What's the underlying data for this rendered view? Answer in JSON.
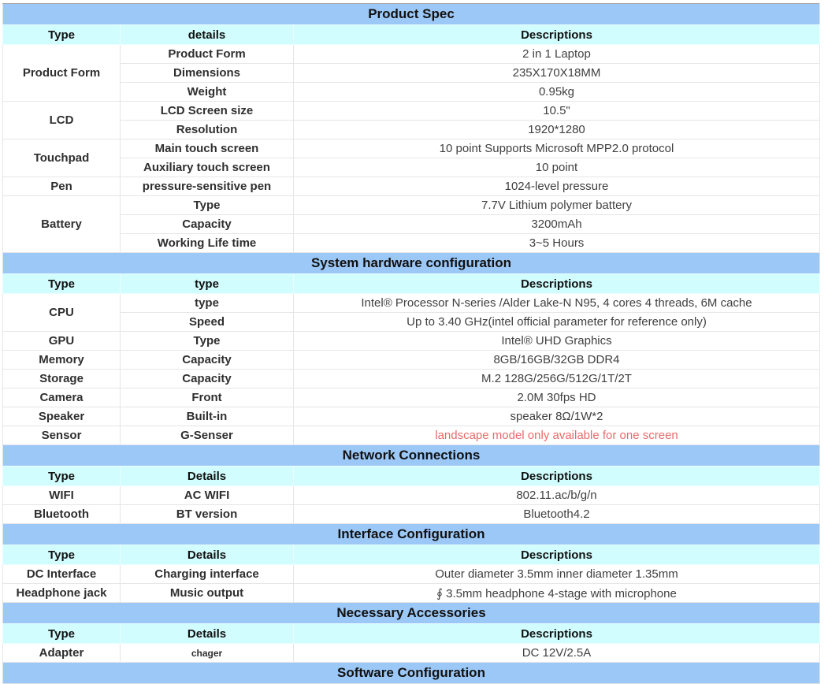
{
  "colors": {
    "section_header_bg": "#9cc8f7",
    "column_header_bg": "#d2fdfe",
    "warning_text": "#e96a6a",
    "body_text": "#404040",
    "bold_text": "#2f2f2f"
  },
  "sections": [
    {
      "title": "Product Spec",
      "headers": {
        "type": "Type",
        "detail": "details",
        "desc": "Descriptions"
      },
      "groups": [
        {
          "type": "Product Form",
          "rows": [
            {
              "detail": "Product Form",
              "desc": "2 in 1 Laptop"
            },
            {
              "detail": "Dimensions",
              "desc": "235X170X18MM"
            },
            {
              "detail": "Weight",
              "desc": "0.95kg"
            }
          ]
        },
        {
          "type": "LCD",
          "rows": [
            {
              "detail": "LCD Screen size",
              "desc": "10.5\""
            },
            {
              "detail": "Resolution",
              "desc": "1920*1280"
            }
          ]
        },
        {
          "type": "Touchpad",
          "rows": [
            {
              "detail": "Main touch screen",
              "desc": "10 point Supports Microsoft MPP2.0 protocol"
            },
            {
              "detail": "Auxiliary touch screen",
              "desc": "10 point"
            }
          ]
        },
        {
          "type": "Pen",
          "rows": [
            {
              "detail": "pressure-sensitive pen",
              "desc": "1024-level pressure"
            }
          ]
        },
        {
          "type": "Battery",
          "rows": [
            {
              "detail": "Type",
              "desc": "7.7V Lithium polymer battery"
            },
            {
              "detail": "Capacity",
              "desc": "3200mAh"
            },
            {
              "detail": "Working Life time",
              "desc": "3~5 Hours"
            }
          ]
        }
      ]
    },
    {
      "title": "System hardware configuration",
      "headers": {
        "type": "Type",
        "detail": "type",
        "desc": "Descriptions"
      },
      "groups": [
        {
          "type": "CPU",
          "rows": [
            {
              "detail": "type",
              "desc": "Intel® Processor N-series /Alder Lake-N N95, 4 cores 4 threads, 6M cache"
            },
            {
              "detail": "Speed",
              "desc": "Up to 3.40 GHz(intel official parameter for reference only)"
            }
          ]
        },
        {
          "type": "GPU",
          "rows": [
            {
              "detail": "Type",
              "desc": "Intel® UHD Graphics"
            }
          ]
        },
        {
          "type": "Memory",
          "rows": [
            {
              "detail": "Capacity",
              "desc": "8GB/16GB/32GB DDR4"
            }
          ]
        },
        {
          "type": "Storage",
          "rows": [
            {
              "detail": "Capacity",
              "desc": "M.2 128G/256G/512G/1T/2T"
            }
          ]
        },
        {
          "type": "Camera",
          "rows": [
            {
              "detail": "Front",
              "desc": "2.0M 30fps HD"
            }
          ]
        },
        {
          "type": "Speaker",
          "rows": [
            {
              "detail": "Built-in",
              "desc": "speaker 8Ω/1W*2"
            }
          ]
        },
        {
          "type": "Sensor",
          "rows": [
            {
              "detail": "G-Senser",
              "desc": "landscape model only available for one screen"
            }
          ]
        }
      ]
    },
    {
      "title": "Network Connections",
      "headers": {
        "type": "Type",
        "detail": "Details",
        "desc": "Descriptions"
      },
      "groups": [
        {
          "type": "WIFI",
          "rows": [
            {
              "detail": "AC WIFI",
              "desc": "802.11.ac/b/g/n"
            }
          ]
        },
        {
          "type": "Bluetooth",
          "rows": [
            {
              "detail": "BT version",
              "desc": "Bluetooth4.2"
            }
          ]
        }
      ]
    },
    {
      "title": "Interface Configuration",
      "headers": {
        "type": "Type",
        "detail": "Details",
        "desc": "Descriptions"
      },
      "groups": [
        {
          "type": "DC Interface",
          "rows": [
            {
              "detail": "Charging interface",
              "desc": "Outer diameter 3.5mm inner diameter 1.35mm"
            }
          ]
        },
        {
          "type": "Headphone jack",
          "rows": [
            {
              "detail": "Music output",
              "desc": "∮ 3.5mm headphone 4-stage with microphone"
            }
          ]
        }
      ]
    },
    {
      "title": "Necessary Accessories",
      "headers": {
        "type": "Type",
        "detail": "Details",
        "desc": "Descriptions"
      },
      "groups": [
        {
          "type": "Adapter",
          "rows": [
            {
              "detail": "chager",
              "desc": "DC 12V/2.5A"
            }
          ]
        }
      ]
    },
    {
      "title": "Software Configuration",
      "headers": null,
      "groups": []
    }
  ]
}
